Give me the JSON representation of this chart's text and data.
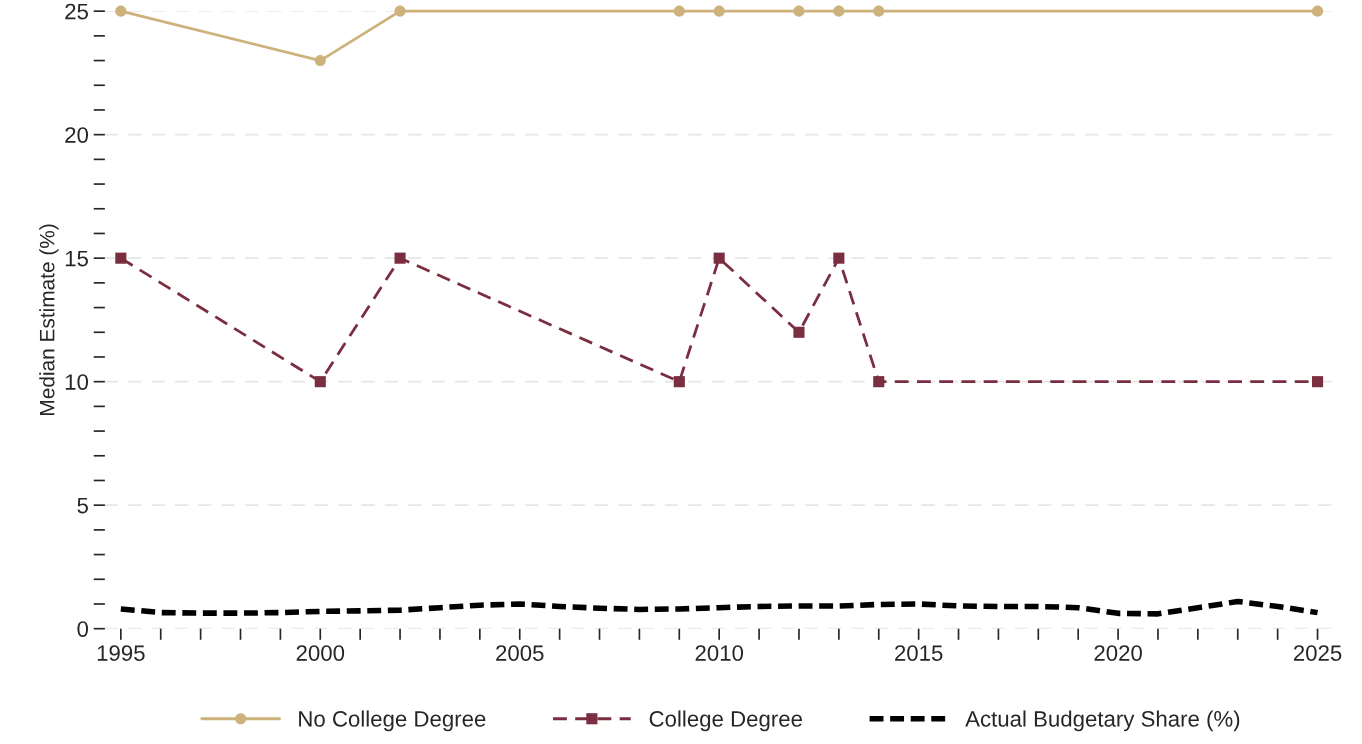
{
  "chart_data": {
    "type": "line",
    "ylabel": "Median Estimate (%)",
    "xlim": [
      1994.6,
      2025.5
    ],
    "ylim": [
      0,
      25
    ],
    "xticks": [
      1995,
      {
        "value": 1996,
        "label": null
      },
      {
        "value": 1997,
        "label": null
      },
      {
        "value": 1998,
        "label": null
      },
      {
        "value": 1999,
        "label": null
      },
      2000,
      {
        "value": 2001,
        "label": null
      },
      {
        "value": 2002,
        "label": null
      },
      {
        "value": 2003,
        "label": null
      },
      {
        "value": 2004,
        "label": null
      },
      2005,
      {
        "value": 2006,
        "label": null
      },
      {
        "value": 2007,
        "label": null
      },
      {
        "value": 2008,
        "label": null
      },
      {
        "value": 2009,
        "label": null
      },
      2010,
      {
        "value": 2011,
        "label": null
      },
      {
        "value": 2012,
        "label": null
      },
      {
        "value": 2013,
        "label": null
      },
      {
        "value": 2014,
        "label": null
      },
      2015,
      {
        "value": 2016,
        "label": null
      },
      {
        "value": 2017,
        "label": null
      },
      {
        "value": 2018,
        "label": null
      },
      {
        "value": 2019,
        "label": null
      },
      2020,
      {
        "value": 2021,
        "label": null
      },
      {
        "value": 2022,
        "label": null
      },
      {
        "value": 2023,
        "label": null
      },
      {
        "value": 2024,
        "label": null
      },
      2025
    ],
    "yticks": [
      0,
      {
        "value": 1,
        "label": null
      },
      {
        "value": 2,
        "label": null
      },
      {
        "value": 3,
        "label": null
      },
      {
        "value": 4,
        "label": null
      },
      5,
      {
        "value": 6,
        "label": null
      },
      {
        "value": 7,
        "label": null
      },
      {
        "value": 8,
        "label": null
      },
      {
        "value": 9,
        "label": null
      },
      10,
      {
        "value": 11,
        "label": null
      },
      {
        "value": 12,
        "label": null
      },
      {
        "value": 13,
        "label": null
      },
      {
        "value": 14,
        "label": null
      },
      15,
      {
        "value": 16,
        "label": null
      },
      {
        "value": 17,
        "label": null
      },
      {
        "value": 18,
        "label": null
      },
      {
        "value": 19,
        "label": null
      },
      20,
      {
        "value": 21,
        "label": null
      },
      {
        "value": 22,
        "label": null
      },
      {
        "value": 23,
        "label": null
      },
      {
        "value": 24,
        "label": null
      },
      25
    ],
    "grid": "y",
    "legend": "bottom",
    "series": [
      {
        "name": "No College Degree",
        "color": "#cdb27c",
        "marker": "circle",
        "line_style": "solid",
        "x": [
          1995,
          2000,
          2002,
          2009,
          2010,
          2012,
          2013,
          2014,
          2025
        ],
        "values": [
          25,
          23,
          25,
          25,
          25,
          25,
          25,
          25,
          25
        ]
      },
      {
        "name": "College Degree",
        "color": "#7a2e40",
        "marker": "square",
        "line_style": "dashed",
        "x": [
          1995,
          2000,
          2002,
          2009,
          2010,
          2012,
          2013,
          2014,
          2025
        ],
        "values": [
          15,
          10,
          15,
          10,
          15,
          12,
          15,
          10,
          10
        ]
      },
      {
        "name": "Actual Budgetary Share (%)",
        "color": "#000000",
        "marker": "none",
        "line_style": "dashed",
        "x": [
          1995,
          1996,
          1997,
          1998,
          1999,
          2000,
          2001,
          2002,
          2003,
          2004,
          2005,
          2006,
          2007,
          2008,
          2009,
          2010,
          2011,
          2012,
          2013,
          2014,
          2015,
          2016,
          2017,
          2018,
          2019,
          2020,
          2021,
          2022,
          2023,
          2024,
          2025
        ],
        "values": [
          0.8,
          0.65,
          0.63,
          0.63,
          0.65,
          0.7,
          0.72,
          0.75,
          0.85,
          0.95,
          1.0,
          0.9,
          0.83,
          0.78,
          0.8,
          0.85,
          0.9,
          0.92,
          0.92,
          0.98,
          1.0,
          0.92,
          0.9,
          0.9,
          0.85,
          0.62,
          0.6,
          0.85,
          1.1,
          0.9,
          0.65
        ]
      }
    ]
  }
}
